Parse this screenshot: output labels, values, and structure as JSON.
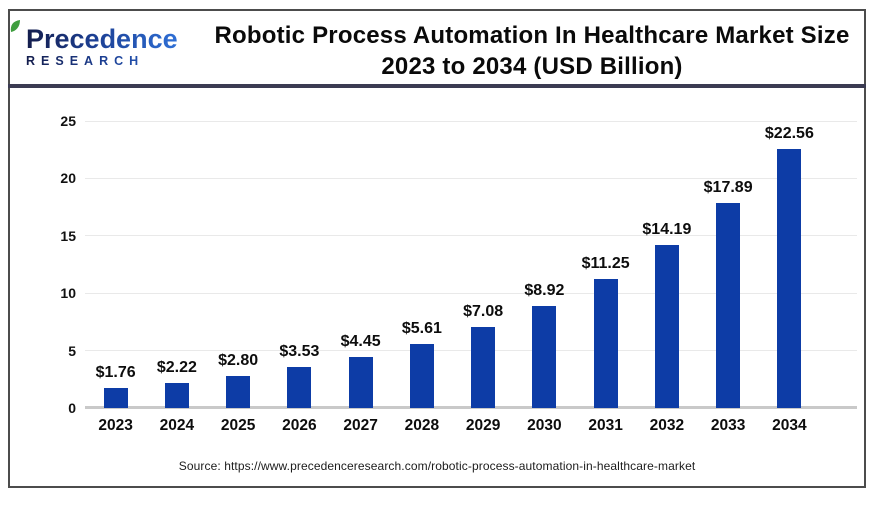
{
  "header": {
    "logo": {
      "line1": "Precedence",
      "line2": "RESEARCH"
    },
    "title_line1": "Robotic Process Automation In Healthcare Market Size",
    "title_line2": "2023 to 2034 (USD Billion)"
  },
  "footer": {
    "source": "Source: https://www.precedenceresearch.com/robotic-process-automation-in-healthcare-market"
  },
  "colors": {
    "bar": "#0d3ca6",
    "divider": "#3b3b52",
    "frame_border": "#4c4c4c",
    "gridline": "#e9e9e9",
    "axis_line": "#c9c9c9",
    "logo_navy": "#141d4c",
    "logo_blue": "#2e6fd6",
    "leaf_green": "#3f9e3f",
    "text": "#0d0d0d"
  },
  "chart_data": {
    "type": "bar",
    "title": "Robotic Process Automation In Healthcare Market Size 2023 to 2034 (USD Billion)",
    "xlabel": "",
    "ylabel": "",
    "categories": [
      "2023",
      "2024",
      "2025",
      "2026",
      "2027",
      "2028",
      "2029",
      "2030",
      "2031",
      "2032",
      "2033",
      "2034"
    ],
    "values": [
      1.76,
      2.22,
      2.8,
      3.53,
      4.45,
      5.61,
      7.08,
      8.92,
      11.25,
      14.19,
      17.89,
      22.56
    ],
    "labels": [
      "$1.76",
      "$2.22",
      "$2.80",
      "$3.53",
      "$4.45",
      "$5.61",
      "$7.08",
      "$8.92",
      "$11.25",
      "$14.19",
      "$17.89",
      "$22.56"
    ],
    "unit": "USD Billion",
    "ylim": [
      0,
      25
    ],
    "yticks": [
      0,
      5,
      10,
      15,
      20,
      25
    ],
    "grid": "horizontal",
    "legend": "none",
    "bar_color": "#0d3ca6"
  }
}
